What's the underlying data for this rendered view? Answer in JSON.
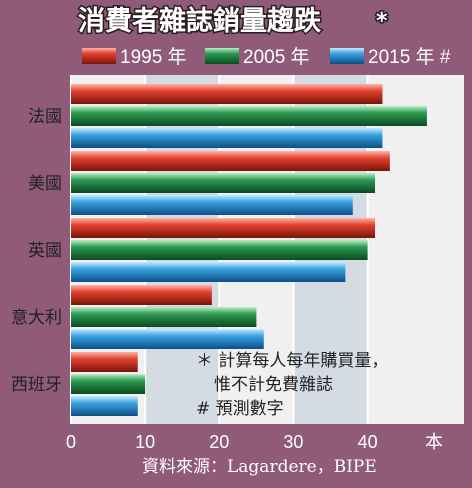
{
  "chart_data": {
    "type": "bar",
    "orientation": "horizontal",
    "title": "消費者雜誌銷量趨跌",
    "title_mark": "*",
    "categories": [
      "法國",
      "美國",
      "英國",
      "意大利",
      "西班牙"
    ],
    "series": [
      {
        "name": "1995 年",
        "values": [
          42,
          43,
          41,
          19,
          9
        ],
        "color": "#c0392b"
      },
      {
        "name": "2005 年",
        "values": [
          48,
          41,
          40,
          25,
          10
        ],
        "color": "#1e8a4a"
      },
      {
        "name": "2015 年 #",
        "values": [
          42,
          38,
          37,
          26,
          9
        ],
        "color": "#2a8fd0"
      }
    ],
    "x_ticks": [
      0,
      10,
      20,
      30,
      40
    ],
    "xlim": [
      0,
      53
    ],
    "unit_label": "本",
    "grid": true
  },
  "notes": {
    "line1": "＊ 計算每人每年購買量，",
    "line2": "惟不計免費雜誌",
    "line3": "# 預測數字"
  },
  "source": "資料來源：Lagardere，BIPE",
  "colors": {
    "background": "#8f5b78",
    "plot_band_light": "#f0f0f0",
    "plot_band_dark": "#d4dbe3"
  }
}
